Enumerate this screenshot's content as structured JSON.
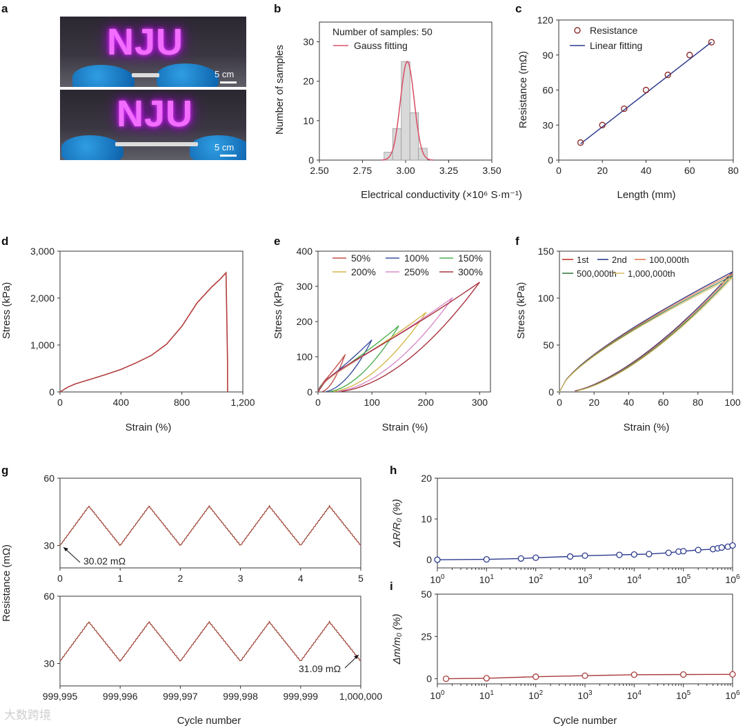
{
  "labels": {
    "a": "a",
    "b": "b",
    "c": "c",
    "d": "d",
    "e": "e",
    "f": "f",
    "g": "g",
    "h": "h",
    "i": "i"
  },
  "photo": {
    "sign_text": "NJU",
    "scale_top": "5 cm",
    "scale_bottom": "5 cm"
  },
  "watermark": "大数跨境",
  "chart_data": [
    {
      "id": "b",
      "type": "bar",
      "xlabel": "Electrical conductivity (×10⁶ S·m⁻¹)",
      "ylabel": "Number of samples",
      "xlim": [
        2.5,
        3.5
      ],
      "ylim": [
        0,
        35
      ],
      "xticks": [
        "2.50",
        "2.75",
        "3.00",
        "3.25",
        "3.50"
      ],
      "yticks": [
        "0",
        "10",
        "20",
        "30"
      ],
      "legend": [
        "Number of samples: 50",
        "Gauss fitting"
      ],
      "bins": [
        2.9,
        2.95,
        3.0,
        3.05,
        3.1
      ],
      "counts": [
        2,
        8,
        25,
        12,
        3
      ],
      "fit_mean": 3.01,
      "fit_sigma": 0.04,
      "fit_peak": 25,
      "colors": {
        "bars": "#d9d9d9",
        "fit": "#d9536b"
      }
    },
    {
      "id": "c",
      "type": "scatter",
      "xlabel": "Length (mm)",
      "ylabel": "Resistance (mΩ)",
      "xlim": [
        0,
        80
      ],
      "ylim": [
        0,
        120
      ],
      "xticks": [
        "0",
        "20",
        "40",
        "60",
        "80"
      ],
      "yticks": [
        "0",
        "30",
        "60",
        "90",
        "120"
      ],
      "legend": [
        "Resistance",
        "Linear fitting"
      ],
      "x": [
        10,
        20,
        30,
        40,
        50,
        60,
        70
      ],
      "y": [
        15,
        30,
        44,
        60,
        73,
        90,
        101
      ],
      "fit": {
        "x": [
          10,
          70
        ],
        "y": [
          14,
          101
        ]
      },
      "colors": {
        "points": "#8b2c2c",
        "fit": "#2c3a8c"
      }
    },
    {
      "id": "d",
      "type": "line",
      "xlabel": "Strain (%)",
      "ylabel": "Stress (kPa)",
      "xlim": [
        0,
        1200
      ],
      "ylim": [
        0,
        3000
      ],
      "xticks": [
        "0",
        "400",
        "800",
        "1,200"
      ],
      "yticks": [
        "0",
        "1,000",
        "2,000",
        "3,000"
      ],
      "x": [
        0,
        50,
        100,
        200,
        300,
        400,
        500,
        600,
        700,
        800,
        900,
        1000,
        1050,
        1090,
        1090,
        1100,
        1100
      ],
      "y": [
        0,
        100,
        170,
        270,
        370,
        480,
        620,
        780,
        1020,
        1400,
        1900,
        2250,
        2400,
        2540,
        2540,
        600,
        0
      ],
      "colors": {
        "line": "#b23a3a"
      }
    },
    {
      "id": "e",
      "type": "line",
      "xlabel": "Strain (%)",
      "ylabel": "Stress (kPa)",
      "xlim": [
        0,
        320
      ],
      "ylim": [
        0,
        400
      ],
      "xticks": [
        "0",
        "100",
        "200",
        "300"
      ],
      "yticks": [
        "0",
        "100",
        "200",
        "300",
        "400"
      ],
      "legend_entries": [
        "50%",
        "100%",
        "150%",
        "200%",
        "250%",
        "300%"
      ],
      "series": [
        {
          "name": "50%",
          "max_strain": 50,
          "max_stress": 105,
          "color": "#c0504d"
        },
        {
          "name": "100%",
          "max_strain": 100,
          "max_stress": 148,
          "color": "#3b4fa0"
        },
        {
          "name": "150%",
          "max_strain": 150,
          "max_stress": 188,
          "color": "#4caf50"
        },
        {
          "name": "200%",
          "max_strain": 200,
          "max_stress": 225,
          "color": "#d4b84a"
        },
        {
          "name": "250%",
          "max_strain": 250,
          "max_stress": 268,
          "color": "#d98bc8"
        },
        {
          "name": "300%",
          "max_strain": 300,
          "max_stress": 312,
          "color": "#a8333f"
        }
      ]
    },
    {
      "id": "f",
      "type": "line",
      "xlabel": "Strain (%)",
      "ylabel": "Stress (kPa)",
      "xlim": [
        0,
        100
      ],
      "ylim": [
        0,
        150
      ],
      "xticks": [
        "0",
        "20",
        "40",
        "60",
        "80",
        "100"
      ],
      "yticks": [
        "0",
        "50",
        "100",
        "150"
      ],
      "legend_entries": [
        "1st",
        "2nd",
        "100,000th",
        "500,000th",
        "1,000,000th"
      ],
      "series": [
        {
          "name": "1st",
          "max_stress": 128,
          "color": "#c0392b"
        },
        {
          "name": "2nd",
          "max_stress": 128,
          "color": "#2c3a8c"
        },
        {
          "name": "100,000th",
          "max_stress": 126,
          "color": "#e07a4f"
        },
        {
          "name": "500,000th",
          "max_stress": 124,
          "color": "#3a7d44"
        },
        {
          "name": "1,000,000th",
          "max_stress": 122,
          "color": "#d9c06b"
        }
      ]
    },
    {
      "id": "g",
      "type": "line",
      "ylabel": "Resistance (mΩ)",
      "xlabel": "Cycle number",
      "top": {
        "xlim": [
          0,
          5
        ],
        "ylim": [
          20,
          60
        ],
        "xticks": [
          "0",
          "1",
          "2",
          "3",
          "4",
          "5"
        ],
        "yticks": [
          "30",
          "60"
        ],
        "annotation": "30.02 mΩ",
        "min": 30,
        "max": 47.5
      },
      "bottom": {
        "xlim": [
          999995,
          1000000
        ],
        "ylim": [
          20,
          60
        ],
        "xticks": [
          "999,995",
          "999,996",
          "999,997",
          "999,998",
          "999,999",
          "1,000,000"
        ],
        "yticks": [
          "30",
          "60"
        ],
        "annotation": "31.09 mΩ",
        "min": 31,
        "max": 48.5
      },
      "colors": {
        "line": "#a0483a"
      }
    },
    {
      "id": "h",
      "type": "line",
      "xscale": "log",
      "xlabel": "",
      "ylabel": "ΔR/R₀ (%)",
      "xlim": [
        1,
        1000000
      ],
      "ylim": [
        -2,
        20
      ],
      "yticks": [
        "0",
        "10",
        "20"
      ],
      "x": [
        1,
        10,
        50,
        100,
        500,
        1000,
        5000,
        10000,
        20000,
        50000,
        80000,
        100000,
        200000,
        400000,
        500000,
        600000,
        800000,
        1000000
      ],
      "y": [
        0,
        0.1,
        0.3,
        0.5,
        0.8,
        1.0,
        1.2,
        1.3,
        1.4,
        1.7,
        2.0,
        2.1,
        2.4,
        2.6,
        2.8,
        3.0,
        3.2,
        3.5
      ],
      "colors": {
        "line": "#2c3a8c"
      }
    },
    {
      "id": "i",
      "type": "line",
      "xscale": "log",
      "xlabel": "Cycle number",
      "ylabel": "Δm/m₀ (%)",
      "xlim": [
        1,
        1000000
      ],
      "ylim": [
        -3,
        50
      ],
      "yticks": [
        "0",
        "25",
        "50"
      ],
      "x": [
        1.5,
        10,
        100,
        1000,
        10000,
        100000,
        1000000
      ],
      "y": [
        0,
        0.3,
        1.2,
        1.8,
        2.4,
        2.5,
        2.6
      ],
      "colors": {
        "line": "#a83a3a"
      }
    }
  ]
}
